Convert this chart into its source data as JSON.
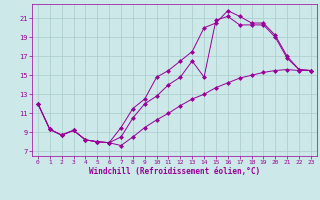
{
  "xlabel": "Windchill (Refroidissement éolien,°C)",
  "bg_color": "#cce8e8",
  "grid_color": "#aacccc",
  "line_color": "#990099",
  "xlim": [
    -0.5,
    23.5
  ],
  "ylim": [
    6.5,
    22.5
  ],
  "yticks": [
    7,
    9,
    11,
    13,
    15,
    17,
    19,
    21
  ],
  "xticks": [
    0,
    1,
    2,
    3,
    4,
    5,
    6,
    7,
    8,
    9,
    10,
    11,
    12,
    13,
    14,
    15,
    16,
    17,
    18,
    19,
    20,
    21,
    22,
    23
  ],
  "series1_x": [
    0,
    1,
    2,
    3,
    4,
    5,
    6,
    7,
    8,
    9,
    10,
    11,
    12,
    13,
    14,
    15,
    16,
    17,
    18,
    19,
    20,
    21,
    22,
    23
  ],
  "series1_y": [
    12.0,
    9.3,
    8.7,
    9.2,
    8.2,
    8.0,
    7.9,
    7.6,
    8.5,
    9.5,
    10.3,
    11.0,
    11.8,
    12.5,
    13.0,
    13.7,
    14.2,
    14.7,
    15.0,
    15.3,
    15.5,
    15.6,
    15.5,
    15.5
  ],
  "series2_x": [
    0,
    1,
    2,
    3,
    4,
    5,
    6,
    7,
    8,
    9,
    10,
    11,
    12,
    13,
    14,
    15,
    16,
    17,
    18,
    19,
    20,
    21,
    22,
    23
  ],
  "series2_y": [
    12.0,
    9.3,
    8.7,
    9.2,
    8.2,
    8.0,
    7.9,
    9.5,
    11.5,
    12.5,
    14.8,
    15.5,
    16.5,
    17.5,
    20.0,
    20.5,
    21.8,
    21.2,
    20.5,
    20.5,
    19.2,
    17.0,
    15.6,
    15.5
  ],
  "series3_x": [
    0,
    1,
    2,
    3,
    4,
    5,
    6,
    7,
    8,
    9,
    10,
    11,
    12,
    13,
    14,
    15,
    16,
    17,
    18,
    19,
    20,
    21,
    22,
    23
  ],
  "series3_y": [
    12.0,
    9.3,
    8.7,
    9.2,
    8.2,
    8.0,
    7.9,
    8.5,
    10.5,
    12.0,
    12.8,
    14.0,
    14.8,
    16.5,
    14.8,
    20.8,
    21.2,
    20.3,
    20.3,
    20.3,
    19.0,
    16.8,
    15.6,
    15.5
  ]
}
